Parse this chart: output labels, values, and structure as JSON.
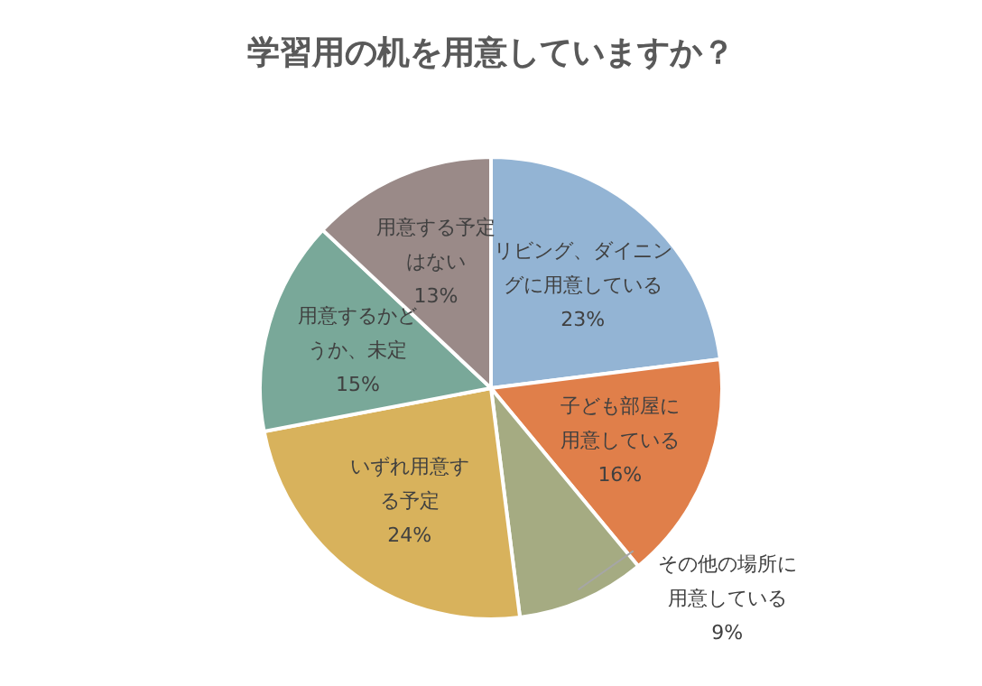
{
  "chart_data": {
    "type": "pie",
    "title": "学習用の机を用意していますか？",
    "categories": [
      "リビング、ダイニングに用意している",
      "子ども部屋に用意している",
      "その他の場所に用意している",
      "いずれ用意する予定",
      "用意するかどうか、未定",
      "用意する予定はない"
    ],
    "values": [
      23,
      16,
      9,
      24,
      15,
      13
    ],
    "value_labels": [
      "23%",
      "16%",
      "9%",
      "24%",
      "15%",
      "13%"
    ],
    "colors": [
      "#93b4d4",
      "#e07f4a",
      "#a5ab82",
      "#d8b25c",
      "#79a899",
      "#9a8a88"
    ]
  }
}
